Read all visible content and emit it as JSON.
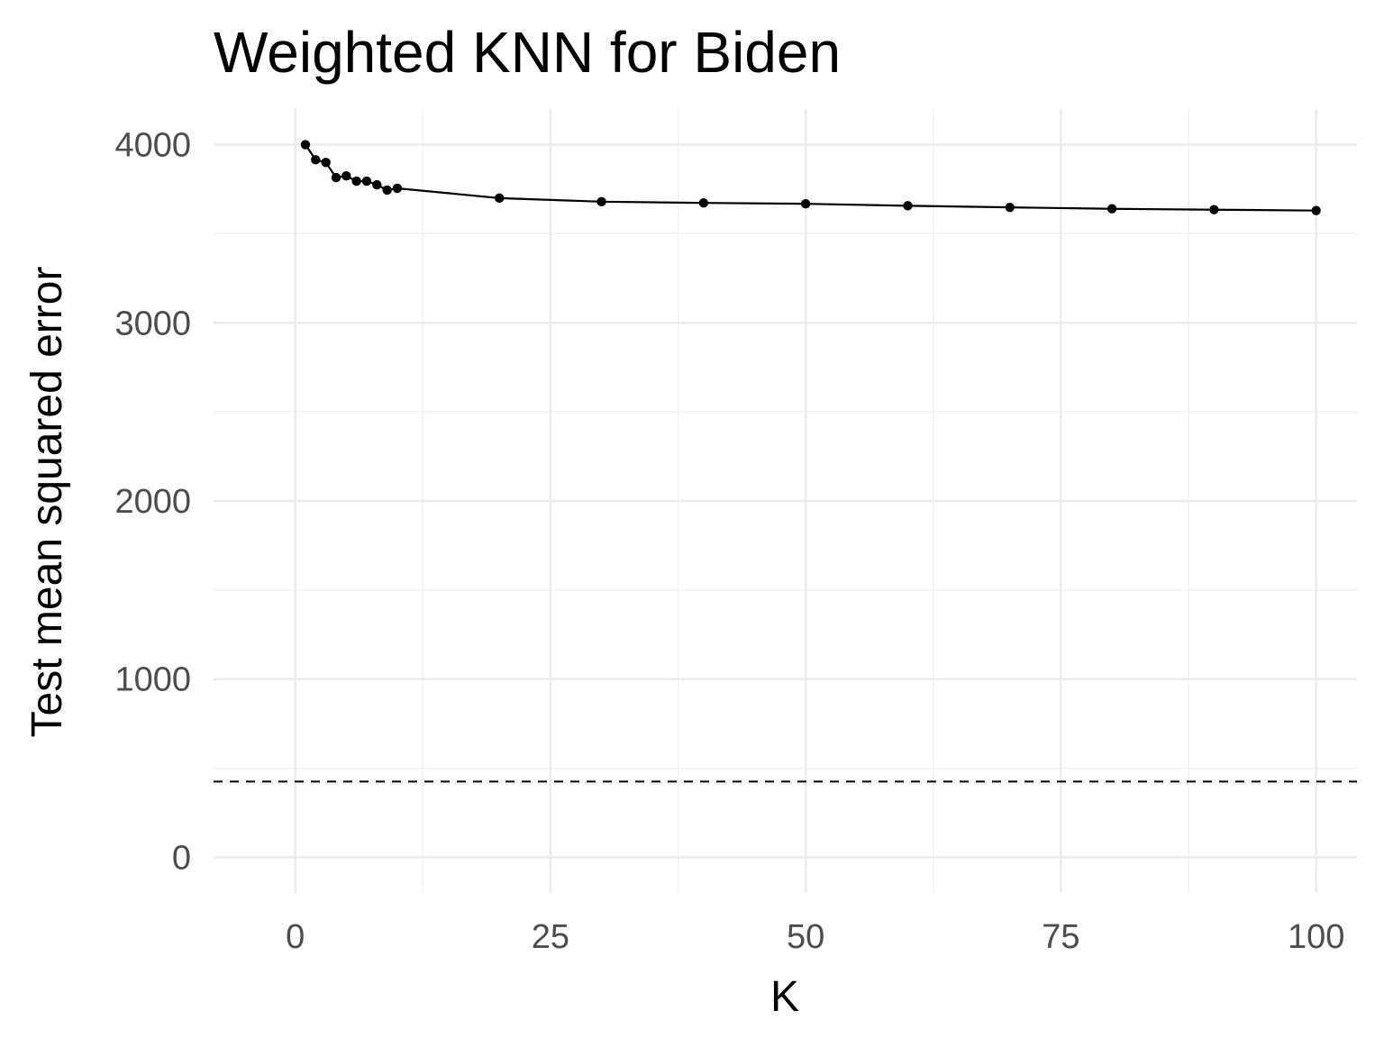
{
  "chart_data": {
    "type": "line",
    "title": "Weighted KNN for Biden",
    "xlabel": "K",
    "ylabel": "Test mean squared error",
    "xlim": [
      -8,
      104
    ],
    "ylim": [
      -200,
      4200
    ],
    "x_ticks": [
      0,
      25,
      50,
      75,
      100
    ],
    "x_tick_labels": [
      "0",
      "25",
      "50",
      "75",
      "100"
    ],
    "y_ticks": [
      0,
      1000,
      2000,
      3000,
      4000
    ],
    "y_tick_labels": [
      "0",
      "1000",
      "2000",
      "3000",
      "4000"
    ],
    "grid": true,
    "series": [
      {
        "x": [
          1,
          2,
          3,
          4,
          5,
          6,
          7,
          8,
          9,
          10,
          20,
          30,
          40,
          50,
          60,
          70,
          80,
          90,
          100
        ],
        "y": [
          4000,
          3915,
          3900,
          3815,
          3825,
          3795,
          3795,
          3775,
          3745,
          3755,
          3700,
          3680,
          3673,
          3668,
          3657,
          3648,
          3640,
          3635,
          3630
        ],
        "color": "#000000",
        "markers": true
      }
    ],
    "reference_line": {
      "orientation": "horizontal",
      "y": 425,
      "style": "dashed",
      "color": "#000000"
    },
    "colors": {
      "background": "#ffffff",
      "grid_major": "#ebebeb",
      "grid_minor": "#f2f2f2",
      "tick_text": "#4d4d4d",
      "text": "#000000"
    }
  }
}
